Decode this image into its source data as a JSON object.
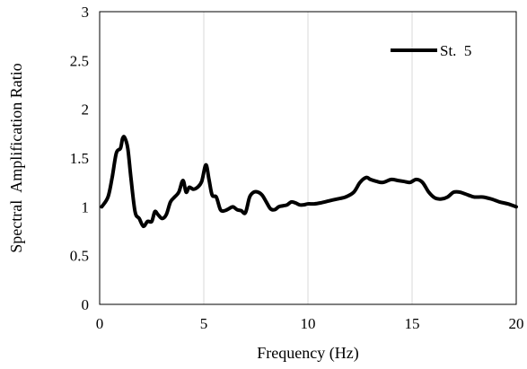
{
  "chart_data": {
    "type": "line",
    "title": "",
    "xlabel": "Frequency (Hz)",
    "ylabel": "Spectral  Amplification Ratio",
    "xlim": [
      0,
      20
    ],
    "ylim": [
      0,
      3
    ],
    "x_ticks": [
      0,
      5,
      10,
      15,
      20
    ],
    "x_tick_labels": [
      "0",
      "5",
      "10",
      "15",
      "20"
    ],
    "y_ticks": [
      0,
      0.5,
      1,
      1.5,
      2,
      2.5,
      3
    ],
    "y_tick_labels": [
      "0",
      "0.5",
      "1",
      "1.5",
      "2",
      "2.5",
      "3"
    ],
    "grid": {
      "vertical": true,
      "horizontal": false
    },
    "legend_position": "top-right",
    "series": [
      {
        "name": "St.  5",
        "color": "#000000",
        "x": [
          0.1,
          0.4,
          0.6,
          0.8,
          1.0,
          1.1,
          1.2,
          1.35,
          1.5,
          1.7,
          1.9,
          2.1,
          2.3,
          2.5,
          2.65,
          2.8,
          3.0,
          3.2,
          3.4,
          3.6,
          3.8,
          4.0,
          4.15,
          4.3,
          4.5,
          4.7,
          4.9,
          5.1,
          5.25,
          5.4,
          5.6,
          5.8,
          6.0,
          6.2,
          6.4,
          6.6,
          6.8,
          7.0,
          7.2,
          7.4,
          7.6,
          7.8,
          8.0,
          8.2,
          8.4,
          8.6,
          8.8,
          9.0,
          9.2,
          9.4,
          9.6,
          9.8,
          10.0,
          10.3,
          10.6,
          11.0,
          11.4,
          11.8,
          12.2,
          12.5,
          12.8,
          13.0,
          13.3,
          13.6,
          14.0,
          14.3,
          14.6,
          14.9,
          15.2,
          15.5,
          15.8,
          16.1,
          16.4,
          16.7,
          17.0,
          17.3,
          17.7,
          18.0,
          18.4,
          18.8,
          19.2,
          19.6,
          20.0
        ],
        "y": [
          1.0,
          1.1,
          1.3,
          1.55,
          1.6,
          1.7,
          1.71,
          1.6,
          1.3,
          0.95,
          0.88,
          0.8,
          0.85,
          0.85,
          0.95,
          0.92,
          0.88,
          0.92,
          1.05,
          1.1,
          1.15,
          1.27,
          1.15,
          1.2,
          1.18,
          1.2,
          1.26,
          1.43,
          1.28,
          1.12,
          1.1,
          0.97,
          0.96,
          0.98,
          1.0,
          0.97,
          0.96,
          0.94,
          1.1,
          1.15,
          1.15,
          1.12,
          1.05,
          0.98,
          0.97,
          1.0,
          1.01,
          1.02,
          1.05,
          1.04,
          1.02,
          1.02,
          1.03,
          1.03,
          1.04,
          1.06,
          1.08,
          1.1,
          1.15,
          1.25,
          1.3,
          1.28,
          1.26,
          1.25,
          1.28,
          1.27,
          1.26,
          1.25,
          1.28,
          1.25,
          1.15,
          1.09,
          1.08,
          1.1,
          1.15,
          1.15,
          1.12,
          1.1,
          1.1,
          1.08,
          1.05,
          1.03,
          1.0
        ]
      }
    ]
  }
}
